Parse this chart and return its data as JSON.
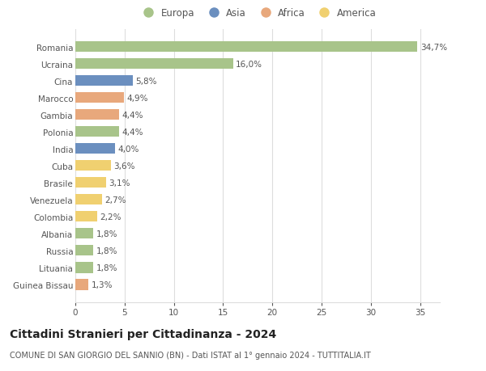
{
  "countries": [
    "Romania",
    "Ucraina",
    "Cina",
    "Marocco",
    "Gambia",
    "Polonia",
    "India",
    "Cuba",
    "Brasile",
    "Venezuela",
    "Colombia",
    "Albania",
    "Russia",
    "Lituania",
    "Guinea Bissau"
  ],
  "values": [
    34.7,
    16.0,
    5.8,
    4.9,
    4.4,
    4.4,
    4.0,
    3.6,
    3.1,
    2.7,
    2.2,
    1.8,
    1.8,
    1.8,
    1.3
  ],
  "labels": [
    "34,7%",
    "16,0%",
    "5,8%",
    "4,9%",
    "4,4%",
    "4,4%",
    "4,0%",
    "3,6%",
    "3,1%",
    "2,7%",
    "2,2%",
    "1,8%",
    "1,8%",
    "1,8%",
    "1,3%"
  ],
  "colors": [
    "#a8c48a",
    "#a8c48a",
    "#6b8fbf",
    "#e8a87c",
    "#e8a87c",
    "#a8c48a",
    "#6b8fbf",
    "#f0d070",
    "#f0d070",
    "#f0d070",
    "#f0d070",
    "#a8c48a",
    "#a8c48a",
    "#a8c48a",
    "#e8a87c"
  ],
  "legend_labels": [
    "Europa",
    "Asia",
    "Africa",
    "America"
  ],
  "legend_colors": [
    "#a8c48a",
    "#6b8fbf",
    "#e8a87c",
    "#f0d070"
  ],
  "title": "Cittadini Stranieri per Cittadinanza - 2024",
  "subtitle": "COMUNE DI SAN GIORGIO DEL SANNIO (BN) - Dati ISTAT al 1° gennaio 2024 - TUTTITALIA.IT",
  "xlim": [
    0,
    37
  ],
  "xticks": [
    0,
    5,
    10,
    15,
    20,
    25,
    30,
    35
  ],
  "background_color": "#ffffff",
  "grid_color": "#dddddd",
  "bar_height": 0.62,
  "label_fontsize": 7.5,
  "tick_fontsize": 7.5,
  "title_fontsize": 10,
  "subtitle_fontsize": 7
}
